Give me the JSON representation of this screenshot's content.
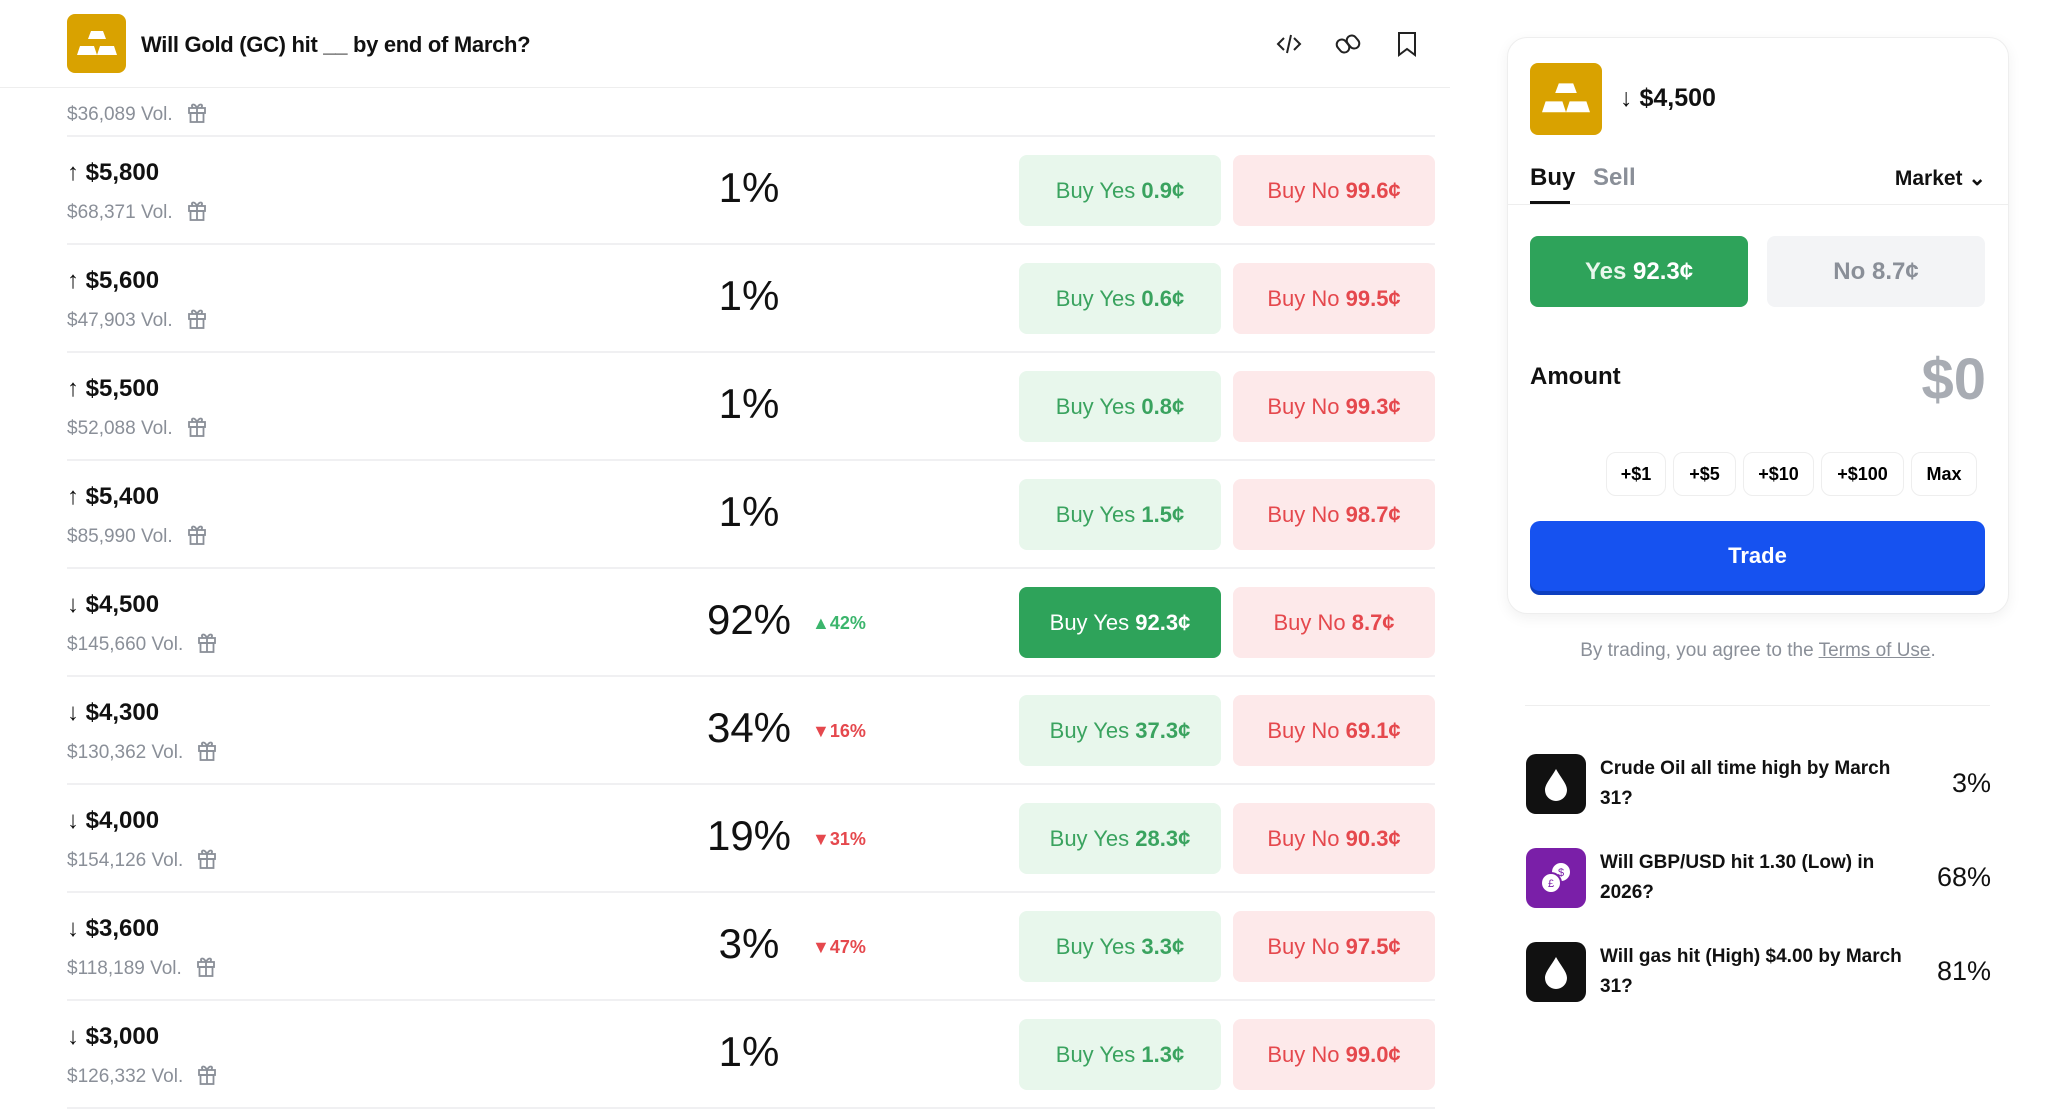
{
  "header": {
    "title": "Will Gold (GC) hit __ by end of March?",
    "icons": [
      "code-embed-icon",
      "link-icon",
      "bookmark-icon"
    ]
  },
  "colors": {
    "gold": "#d9a200",
    "yes": "#2ea35a",
    "no": "#e5484d",
    "trade": "#1652f0"
  },
  "rows": [
    {
      "label": "",
      "direction": "",
      "volume": "$36,089 Vol.",
      "percent": "",
      "change": "",
      "change_dir": "",
      "yes": "",
      "no": ""
    },
    {
      "label": "$5,800",
      "direction": "up",
      "volume": "$68,371 Vol.",
      "percent": "1%",
      "change": "",
      "change_dir": "",
      "yes": "0.9¢",
      "no": "99.6¢"
    },
    {
      "label": "$5,600",
      "direction": "up",
      "volume": "$47,903 Vol.",
      "percent": "1%",
      "change": "",
      "change_dir": "",
      "yes": "0.6¢",
      "no": "99.5¢"
    },
    {
      "label": "$5,500",
      "direction": "up",
      "volume": "$52,088 Vol.",
      "percent": "1%",
      "change": "",
      "change_dir": "",
      "yes": "0.8¢",
      "no": "99.3¢"
    },
    {
      "label": "$5,400",
      "direction": "up",
      "volume": "$85,990 Vol.",
      "percent": "1%",
      "change": "",
      "change_dir": "",
      "yes": "1.5¢",
      "no": "98.7¢"
    },
    {
      "label": "$4,500",
      "direction": "down",
      "volume": "$145,660 Vol.",
      "percent": "92%",
      "change": "42%",
      "change_dir": "up",
      "yes": "92.3¢",
      "no": "8.7¢",
      "selected": true
    },
    {
      "label": "$4,300",
      "direction": "down",
      "volume": "$130,362 Vol.",
      "percent": "34%",
      "change": "16%",
      "change_dir": "down",
      "yes": "37.3¢",
      "no": "69.1¢"
    },
    {
      "label": "$4,000",
      "direction": "down",
      "volume": "$154,126 Vol.",
      "percent": "19%",
      "change": "31%",
      "change_dir": "down",
      "yes": "28.3¢",
      "no": "90.3¢"
    },
    {
      "label": "$3,600",
      "direction": "down",
      "volume": "$118,189 Vol.",
      "percent": "3%",
      "change": "47%",
      "change_dir": "down",
      "yes": "3.3¢",
      "no": "97.5¢"
    },
    {
      "label": "$3,000",
      "direction": "down",
      "volume": "$126,332 Vol.",
      "percent": "1%",
      "change": "",
      "change_dir": "",
      "yes": "1.3¢",
      "no": "99.0¢"
    }
  ],
  "labels": {
    "buy_yes": "Buy Yes",
    "buy_no": "Buy No"
  },
  "trade": {
    "title": "$4,500",
    "title_dir": "down",
    "tabs": [
      "Buy",
      "Sell"
    ],
    "active_tab": "Buy",
    "order_type": "Market",
    "yes_label": "Yes",
    "yes_price": "92.3¢",
    "no_label": "No",
    "no_price": "8.7¢",
    "amount_label": "Amount",
    "amount_value": "$0",
    "quick": [
      "+$1",
      "+$5",
      "+$10",
      "+$100",
      "Max"
    ],
    "trade_label": "Trade",
    "terms_prefix": "By trading, you agree to the ",
    "terms_link": "Terms of Use",
    "terms_suffix": "."
  },
  "related": [
    {
      "icon": "oil-drop-icon",
      "title": "Crude Oil all time high by March 31?",
      "percent": "3%",
      "color": "#111111"
    },
    {
      "icon": "currency-exchange-icon",
      "title": "Will GBP/USD hit 1.30 (Low) in 2026?",
      "percent": "68%",
      "color": "#7a1fa8"
    },
    {
      "icon": "oil-drop-icon",
      "title": "Will gas hit (High) $4.00 by March 31?",
      "percent": "81%",
      "color": "#111111"
    }
  ]
}
